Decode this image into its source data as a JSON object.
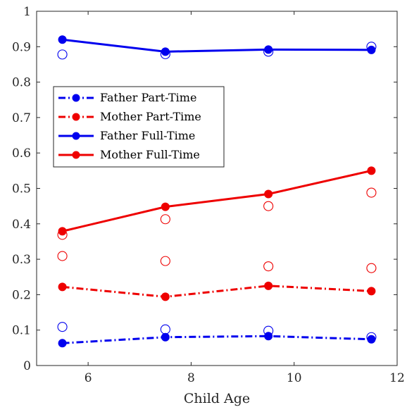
{
  "chart_data": {
    "type": "line",
    "title": "",
    "xlabel": "Child Age",
    "ylabel": "",
    "xlim": [
      5,
      12
    ],
    "ylim": [
      0,
      1
    ],
    "x_ticks": [
      6,
      8,
      10,
      12
    ],
    "y_ticks": [
      0,
      0.1,
      0.2,
      0.3,
      0.4,
      0.5,
      0.6,
      0.7,
      0.8,
      0.9,
      1
    ],
    "x_tick_labels": [
      "6",
      "8",
      "10",
      "12"
    ],
    "y_tick_labels": [
      "0",
      "0.1",
      "0.2",
      "0.3",
      "0.4",
      "0.5",
      "0.6",
      "0.7",
      "0.8",
      "0.9",
      "1"
    ],
    "grid": false,
    "legend_position": "upper-left",
    "x": [
      5.5,
      7.5,
      9.5,
      11.5
    ],
    "series": [
      {
        "name": "Father Part-Time",
        "color": "#0000ee",
        "line_style": "dash-dot",
        "values": [
          0.063,
          0.08,
          0.083,
          0.074
        ],
        "open_markers": [
          0.109,
          0.102,
          0.098,
          0.08
        ]
      },
      {
        "name": "Mother Part-Time",
        "color": "#ee0000",
        "line_style": "dash-dot",
        "values": [
          0.222,
          0.194,
          0.225,
          0.21
        ],
        "open_markers": [
          0.309,
          0.295,
          0.28,
          0.275
        ]
      },
      {
        "name": "Father Full-Time",
        "color": "#0000ee",
        "line_style": "solid",
        "values": [
          0.92,
          0.886,
          0.892,
          0.891
        ],
        "open_markers": [
          0.878,
          0.879,
          0.886,
          0.9
        ]
      },
      {
        "name": "Mother Full-Time",
        "color": "#ee0000",
        "line_style": "solid",
        "values": [
          0.379,
          0.448,
          0.484,
          0.55
        ],
        "open_markers": [
          0.369,
          0.413,
          0.45,
          0.488
        ]
      }
    ]
  }
}
